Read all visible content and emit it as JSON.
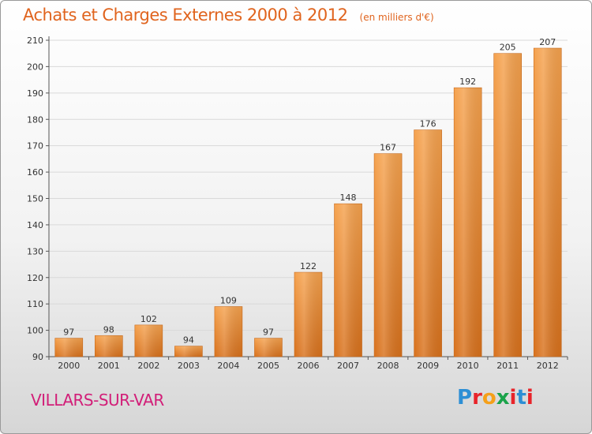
{
  "header": {
    "title": "Achats et Charges Externes 2000 à 2012",
    "unit": "(en milliers d'€)"
  },
  "footer": {
    "commune": "VILLARS-SUR-VAR",
    "logo_letters": [
      "P",
      "r",
      "o",
      "x",
      "i",
      "t",
      "i"
    ],
    "logo_colors": [
      "#2d8fd5",
      "#e8242a",
      "#f5a01a",
      "#1aa34a",
      "#e8242a",
      "#2d8fd5",
      "#e8242a"
    ]
  },
  "colors": {
    "bar_light": "#f5a24e",
    "bar_dark": "#d8711c",
    "grid": "#d9d9d9",
    "title": "#e0641e",
    "commune": "#d21e78"
  },
  "chart_data": {
    "type": "bar",
    "title": "Achats et Charges Externes 2000 à 2012",
    "subtitle": "(en milliers d'€)",
    "categories": [
      "2000",
      "2001",
      "2002",
      "2003",
      "2004",
      "2005",
      "2006",
      "2007",
      "2008",
      "2009",
      "2010",
      "2011",
      "2012"
    ],
    "values": [
      97,
      98,
      102,
      94,
      109,
      97,
      122,
      148,
      167,
      176,
      192,
      205,
      207
    ],
    "ylim": [
      90,
      210
    ],
    "yticks": [
      90,
      100,
      110,
      120,
      130,
      140,
      150,
      160,
      170,
      180,
      190,
      200,
      210
    ],
    "grid": true,
    "legend": "none",
    "data_labels": true
  }
}
